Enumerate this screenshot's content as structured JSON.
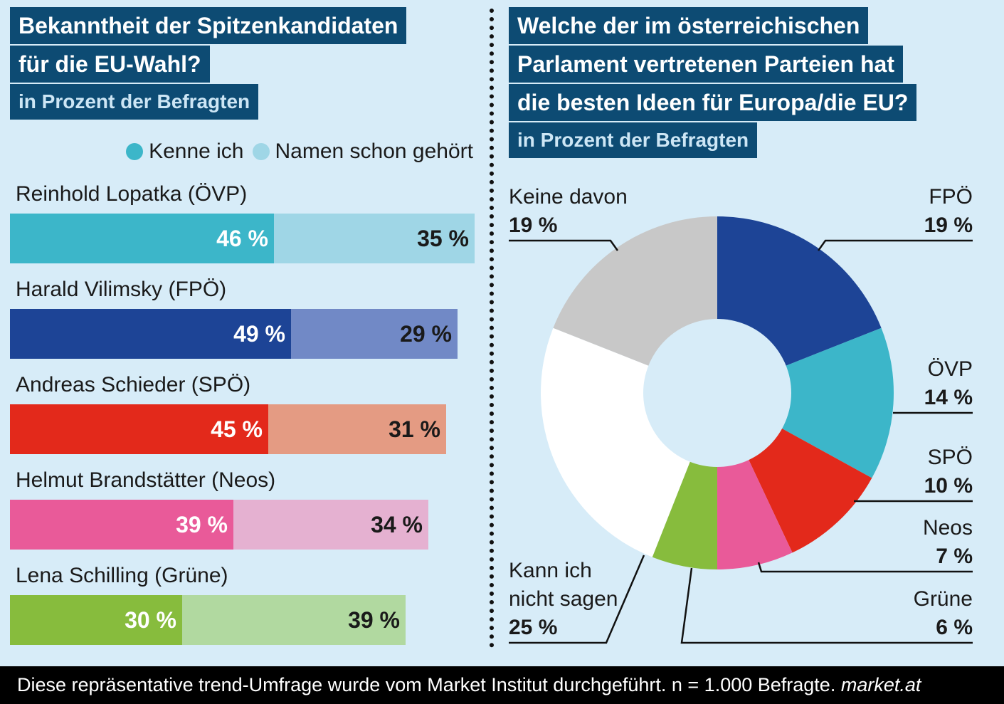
{
  "left": {
    "title_lines": [
      "Bekanntheit der Spitzenkandidaten",
      "für die EU-Wahl?"
    ],
    "subtitle": "in Prozent der Befragten",
    "legend": [
      {
        "label": "Kenne ich",
        "color": "#3cb6c9"
      },
      {
        "label": "Namen schon gehört",
        "color": "#9fd6e6"
      }
    ]
  },
  "right": {
    "title_lines": [
      "Welche der im österreichischen",
      "Parlament vertretenen Parteien hat",
      "die besten Ideen für Europa/die EU?"
    ],
    "subtitle": "in Prozent der Befragten"
  },
  "chart_data": [
    {
      "type": "bar",
      "stacked": true,
      "orientation": "horizontal",
      "title": "Bekanntheit der Spitzenkandidaten für die EU-Wahl?",
      "subtitle": "in Prozent der Befragten",
      "categories": [
        "Reinhold Lopatka (ÖVP)",
        "Harald Vilimsky (FPÖ)",
        "Andreas Schieder (SPÖ)",
        "Helmut Brandstätter (Neos)",
        "Lena Schilling (Grüne)"
      ],
      "series": [
        {
          "name": "Kenne ich",
          "values": [
            46,
            49,
            45,
            39,
            30
          ],
          "labels": [
            "46 %",
            "49 %",
            "45 %",
            "39 %",
            "30 %"
          ]
        },
        {
          "name": "Namen schon gehört",
          "values": [
            35,
            29,
            31,
            34,
            39
          ],
          "labels": [
            "35 %",
            "29 %",
            "31 %",
            "34 %",
            "39 %"
          ]
        }
      ],
      "colors": [
        {
          "known": "#3cb6c9",
          "heard": "#9fd6e6"
        },
        {
          "known": "#1d4496",
          "heard": "#7189c6"
        },
        {
          "known": "#e3291b",
          "heard": "#e49b83"
        },
        {
          "known": "#e95a99",
          "heard": "#e5b1d1"
        },
        {
          "known": "#87bc3d",
          "heard": "#b1d9a0"
        }
      ],
      "legend_position": "top-right"
    },
    {
      "type": "pie",
      "donut": true,
      "title": "Welche der im österreichischen Parlament vertretenen Parteien hat die besten Ideen für Europa/die EU?",
      "subtitle": "in Prozent der Befragten",
      "slices": [
        {
          "name": "FPÖ",
          "value": 19,
          "label": "19 %",
          "color": "#1d4496"
        },
        {
          "name": "ÖVP",
          "value": 14,
          "label": "14 %",
          "color": "#3cb6c9"
        },
        {
          "name": "SPÖ",
          "value": 10,
          "label": "10 %",
          "color": "#e3291b"
        },
        {
          "name": "Neos",
          "value": 7,
          "label": "7 %",
          "color": "#e95a99"
        },
        {
          "name": "Grüne",
          "value": 6,
          "label": "6 %",
          "color": "#87bc3d"
        },
        {
          "name": "Kann ich nicht sagen",
          "value": 25,
          "label": "25 %",
          "color": "#ffffff"
        },
        {
          "name": "Keine davon",
          "value": 19,
          "label": "19 %",
          "color": "#c8c8c8"
        }
      ]
    }
  ],
  "pie_labels": {
    "fpo": {
      "name": "FPÖ",
      "pct": "19 %"
    },
    "ovp": {
      "name": "ÖVP",
      "pct": "14 %"
    },
    "spo": {
      "name": "SPÖ",
      "pct": "10 %"
    },
    "neos": {
      "name": "Neos",
      "pct": "7 %"
    },
    "grune": {
      "name": "Grüne",
      "pct": "6 %"
    },
    "kann": {
      "name_lines": [
        "Kann ich",
        "nicht sagen"
      ],
      "pct": "25 %"
    },
    "keine": {
      "name": "Keine davon",
      "pct": "19 %"
    }
  },
  "footer": {
    "text": "Diese repräsentative trend-Umfrage wurde vom Market Institut durchgeführt. n = 1.000 Befragte.",
    "source": "market.at"
  }
}
